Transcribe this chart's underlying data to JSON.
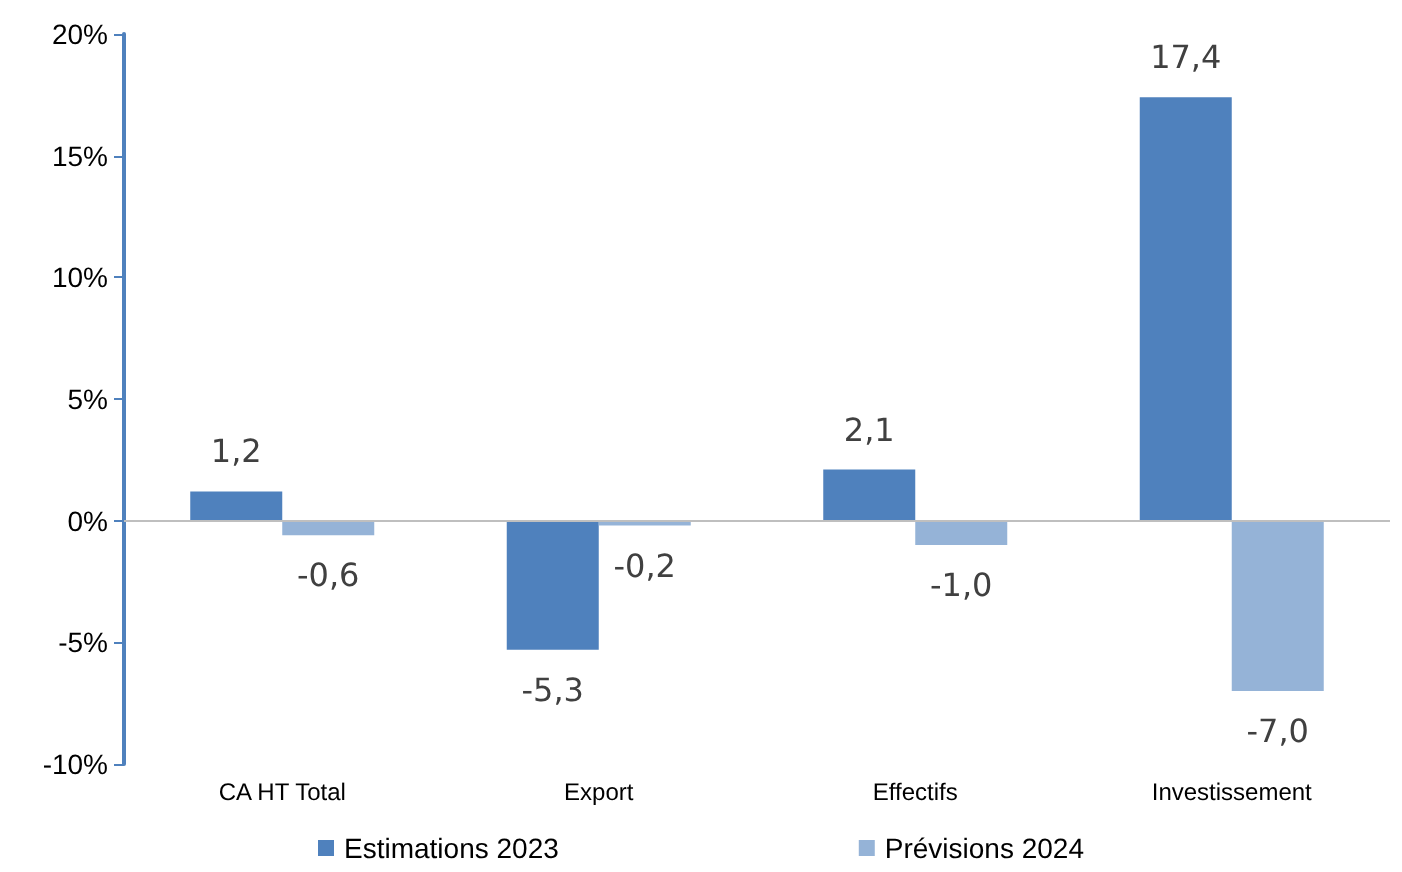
{
  "chart_data": {
    "type": "bar",
    "categories": [
      "CA HT Total",
      "Export",
      "Effectifs",
      "Investissement"
    ],
    "series": [
      {
        "name": "Estimations 2023",
        "color": "#4f81bd",
        "values": [
          1.2,
          -5.3,
          2.1,
          17.4
        ],
        "value_labels": [
          "1,2",
          "-5,3",
          "2,1",
          "17,4"
        ]
      },
      {
        "name": "Prévisions 2024",
        "color": "#95b3d7",
        "values": [
          -0.6,
          -0.2,
          -1.0,
          -7.0
        ],
        "value_labels": [
          "-0,6",
          "-0,2",
          "-1,0",
          "-7,0"
        ]
      }
    ],
    "ylim": [
      -10,
      20
    ],
    "yticks": [
      {
        "value": -10,
        "label": "-10%"
      },
      {
        "value": -5,
        "label": "-5%"
      },
      {
        "value": 0,
        "label": "0%"
      },
      {
        "value": 5,
        "label": "5%"
      },
      {
        "value": 10,
        "label": "10%"
      },
      {
        "value": 15,
        "label": "15%"
      },
      {
        "value": 20,
        "label": "20%"
      }
    ],
    "ref_lines": [
      {
        "axis": "y",
        "value": 0,
        "color": "#bfbfbf"
      }
    ],
    "grid": false,
    "legend": "bottom"
  }
}
